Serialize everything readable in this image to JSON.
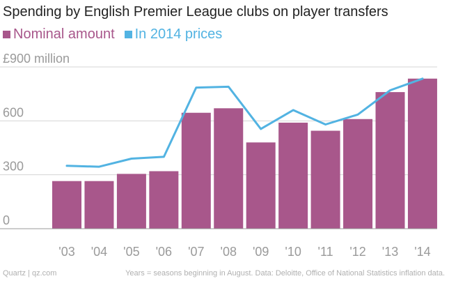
{
  "title": "Spending by English Premier League clubs on player transfers",
  "legend": [
    {
      "label": "Nominal amount",
      "color": "#a8578b",
      "kind": "bar"
    },
    {
      "label": "In 2014 prices",
      "color": "#52b3e2",
      "kind": "line"
    }
  ],
  "footer": {
    "source_left": "Quartz | qz.com",
    "note_right": "Years = seasons beginning in August. Data: Deloitte, Office of National Statistics inflation data."
  },
  "chart_data": {
    "type": "bar",
    "categories": [
      "'03",
      "'04",
      "'05",
      "'06",
      "'07",
      "'08",
      "'09",
      "'10",
      "'11",
      "'12",
      "'13",
      "'14"
    ],
    "series": [
      {
        "name": "Nominal amount",
        "type": "bar",
        "color": "#a8578b",
        "values": [
          265,
          265,
          305,
          320,
          645,
          670,
          480,
          590,
          545,
          610,
          760,
          835
        ]
      },
      {
        "name": "In 2014 prices",
        "type": "line",
        "color": "#52b3e2",
        "values": [
          350,
          345,
          390,
          400,
          785,
          790,
          555,
          660,
          580,
          635,
          770,
          835
        ]
      }
    ],
    "ylim": [
      0,
      900
    ],
    "yticks": [
      0,
      300,
      600,
      900
    ],
    "ytick_labels": [
      "0",
      "300",
      "600",
      "£900 million"
    ],
    "grid": true
  }
}
